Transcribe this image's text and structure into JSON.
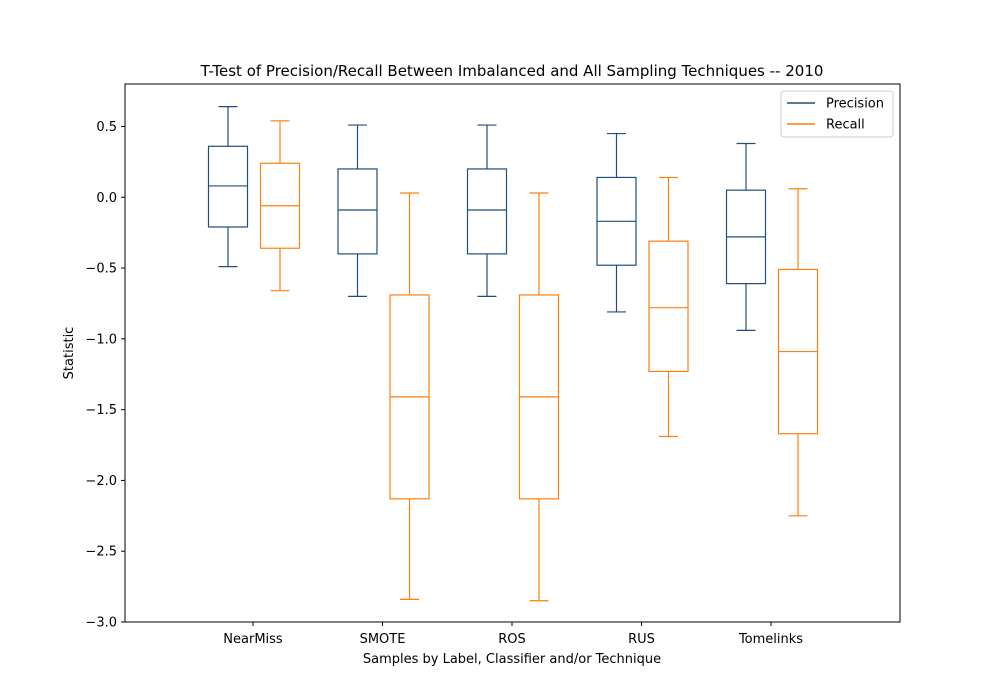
{
  "chart_data": {
    "type": "boxplot",
    "title": "T-Test of Precision/Recall Between Imbalanced and All Sampling Techniques -- 2010",
    "xlabel": "Samples by Label, Classifier and/or Technique",
    "ylabel": "Statistic",
    "ylim": [
      -3.0,
      0.8
    ],
    "yticks": [
      0.5,
      0.0,
      -0.5,
      -1.0,
      -1.5,
      -2.0,
      -2.5,
      -3.0
    ],
    "ytick_labels": [
      "0.5",
      "0.0",
      "−0.5",
      "−1.0",
      "−1.5",
      "−2.0",
      "−2.5",
      "−3.0"
    ],
    "categories": [
      "NearMiss",
      "SMOTE",
      "ROS",
      "RUS",
      "Tomelinks"
    ],
    "legend": {
      "placement": "top-right"
    },
    "grid": false,
    "series": [
      {
        "name": "Precision",
        "color": "#1f4e79",
        "boxes": [
          {
            "whislo": -0.49,
            "q1": -0.21,
            "med": 0.08,
            "q3": 0.36,
            "whishi": 0.64
          },
          {
            "whislo": -0.7,
            "q1": -0.4,
            "med": -0.09,
            "q3": 0.2,
            "whishi": 0.51
          },
          {
            "whislo": -0.7,
            "q1": -0.4,
            "med": -0.09,
            "q3": 0.2,
            "whishi": 0.51
          },
          {
            "whislo": -0.81,
            "q1": -0.48,
            "med": -0.17,
            "q3": 0.14,
            "whishi": 0.45
          },
          {
            "whislo": -0.94,
            "q1": -0.61,
            "med": -0.28,
            "q3": 0.05,
            "whishi": 0.38
          }
        ]
      },
      {
        "name": "Recall",
        "color": "#ff7f0e",
        "boxes": [
          {
            "whislo": -0.66,
            "q1": -0.36,
            "med": -0.06,
            "q3": 0.24,
            "whishi": 0.54
          },
          {
            "whislo": -2.84,
            "q1": -2.13,
            "med": -1.41,
            "q3": -0.69,
            "whishi": 0.03
          },
          {
            "whislo": -2.85,
            "q1": -2.13,
            "med": -1.41,
            "q3": -0.69,
            "whishi": 0.03
          },
          {
            "whislo": -1.69,
            "q1": -1.23,
            "med": -0.78,
            "q3": -0.31,
            "whishi": 0.14
          },
          {
            "whislo": -2.25,
            "q1": -1.67,
            "med": -1.09,
            "q3": -0.51,
            "whishi": 0.06
          }
        ]
      }
    ]
  }
}
